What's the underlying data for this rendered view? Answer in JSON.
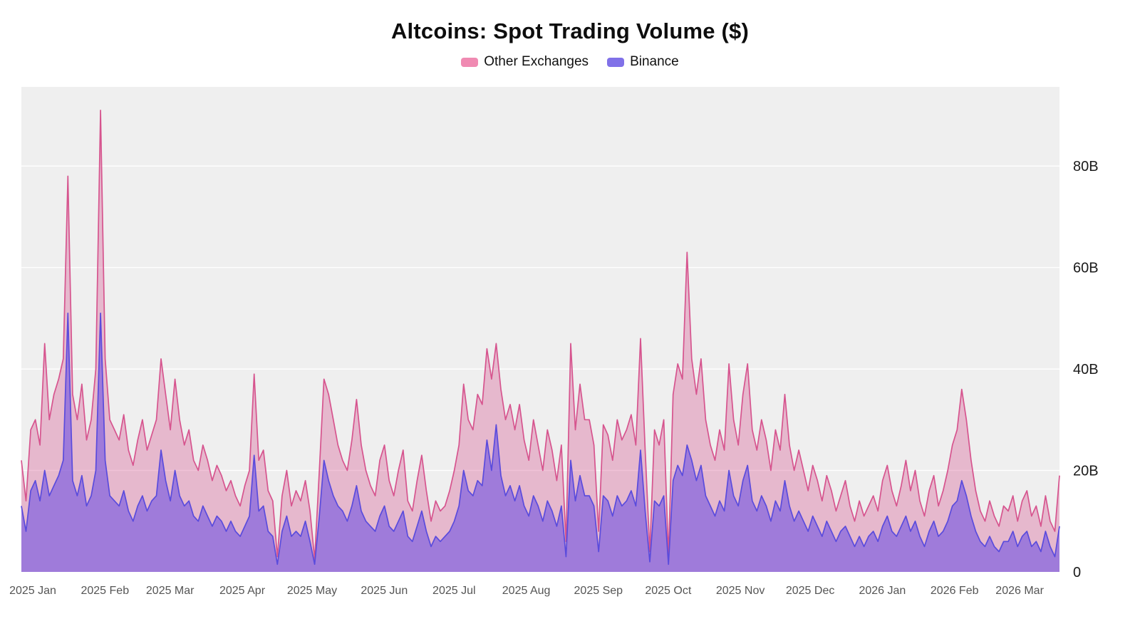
{
  "page": {
    "background": "#ffffff"
  },
  "chart_data": {
    "type": "area",
    "stacked": true,
    "title": "Altcoins: Spot Trading Volume ($)",
    "legend_position": "top-center",
    "grid": "horizontal-only",
    "plot_background": "#efefef",
    "y_axis": {
      "side": "right",
      "max": 95.6,
      "unit": "B",
      "ticks": [
        {
          "label": "0",
          "value": 0
        },
        {
          "label": "20B",
          "value": 20
        },
        {
          "label": "40B",
          "value": 40
        },
        {
          "label": "60B",
          "value": 60
        },
        {
          "label": "80B",
          "value": 80
        }
      ]
    },
    "x_axis": {
      "start_date": "2025-01-01",
      "step_days": 2,
      "span_days": 446,
      "ticks": [
        {
          "label": "2025 Jan",
          "day": 0
        },
        {
          "label": "2025 Feb",
          "day": 31
        },
        {
          "label": "2025 Mar",
          "day": 59
        },
        {
          "label": "2025 Apr",
          "day": 90
        },
        {
          "label": "2025 May",
          "day": 120
        },
        {
          "label": "2025 Jun",
          "day": 151
        },
        {
          "label": "2025 Jul",
          "day": 181
        },
        {
          "label": "2025 Aug",
          "day": 212
        },
        {
          "label": "2025 Sep",
          "day": 243
        },
        {
          "label": "2025 Oct",
          "day": 273
        },
        {
          "label": "2025 Nov",
          "day": 304
        },
        {
          "label": "2025 Dec",
          "day": 334
        },
        {
          "label": "2026 Jan",
          "day": 365
        },
        {
          "label": "2026 Feb",
          "day": 396
        },
        {
          "label": "2026 Mar",
          "day": 424
        }
      ]
    },
    "series": [
      {
        "name": "Other Exchanges",
        "line_color": "#d6548e",
        "fill_color": "rgba(216,84,142,0.35)",
        "swatch_color": "#f08ab2",
        "values_note": "plotted as cumulative top line (Binance + Other Exchanges), billions USD, one value per 2 days",
        "values": [
          22,
          14,
          28,
          30,
          25,
          45,
          30,
          35,
          38,
          42,
          78,
          35,
          30,
          37,
          26,
          30,
          40,
          91,
          42,
          30,
          28,
          26,
          31,
          24,
          21,
          26,
          30,
          24,
          27,
          30,
          42,
          35,
          28,
          38,
          30,
          25,
          28,
          22,
          20,
          25,
          22,
          18,
          21,
          19,
          16,
          18,
          15,
          13,
          17,
          20,
          39,
          22,
          24,
          16,
          14,
          3,
          15,
          20,
          13,
          16,
          14,
          18,
          12,
          2.5,
          20,
          38,
          35,
          30,
          25,
          22,
          20,
          26,
          34,
          25,
          20,
          17,
          15,
          22,
          25,
          18,
          15,
          20,
          24,
          14,
          12,
          18,
          23,
          16,
          10,
          14,
          12,
          13,
          16,
          20,
          25,
          37,
          30,
          28,
          35,
          33,
          44,
          38,
          45,
          36,
          30,
          33,
          28,
          33,
          26,
          22,
          30,
          25,
          20,
          28,
          24,
          18,
          25,
          6,
          45,
          28,
          37,
          30,
          30,
          25,
          8,
          29,
          27,
          22,
          30,
          26,
          28,
          31,
          25,
          46,
          24,
          4,
          28,
          25,
          30,
          3,
          35,
          41,
          38,
          63,
          42,
          35,
          42,
          30,
          25,
          22,
          28,
          24,
          41,
          30,
          25,
          35,
          41,
          28,
          24,
          30,
          26,
          20,
          28,
          24,
          35,
          25,
          20,
          24,
          20,
          16,
          21,
          18,
          14,
          19,
          16,
          12,
          15,
          18,
          13,
          10,
          14,
          11,
          13,
          15,
          12,
          18,
          21,
          16,
          13,
          17,
          22,
          16,
          20,
          14,
          11,
          16,
          19,
          13,
          16,
          20,
          25,
          28,
          36,
          30,
          22,
          16,
          12,
          10,
          14,
          11,
          9,
          13,
          12,
          15,
          10,
          14,
          16,
          11,
          13,
          9,
          15,
          10,
          8,
          19
        ]
      },
      {
        "name": "Binance",
        "line_color": "#5a4bdc",
        "fill_color": "rgba(112,82,226,0.6)",
        "swatch_color": "#8071e8",
        "values_note": "billions USD, one value per 2 days",
        "values": [
          13,
          8,
          16,
          18,
          14,
          20,
          15,
          17,
          19,
          22,
          51,
          18,
          15,
          19,
          13,
          15,
          20,
          51,
          22,
          15,
          14,
          13,
          16,
          12,
          10,
          13,
          15,
          12,
          14,
          15,
          24,
          18,
          14,
          20,
          15,
          13,
          14,
          11,
          10,
          13,
          11,
          9,
          11,
          10,
          8,
          10,
          8,
          7,
          9,
          11,
          23,
          12,
          13,
          8,
          7,
          1.5,
          8,
          11,
          7,
          8,
          7,
          10,
          6,
          1.5,
          11,
          22,
          18,
          15,
          13,
          12,
          10,
          13,
          17,
          12,
          10,
          9,
          8,
          11,
          13,
          9,
          8,
          10,
          12,
          7,
          6,
          9,
          12,
          8,
          5,
          7,
          6,
          7,
          8,
          10,
          13,
          20,
          16,
          15,
          18,
          17,
          26,
          20,
          29,
          19,
          15,
          17,
          14,
          17,
          13,
          11,
          15,
          13,
          10,
          14,
          12,
          9,
          13,
          3,
          22,
          14,
          19,
          15,
          15,
          13,
          4,
          15,
          14,
          11,
          15,
          13,
          14,
          16,
          13,
          24,
          12,
          2,
          14,
          13,
          15,
          1.5,
          18,
          21,
          19,
          25,
          22,
          18,
          21,
          15,
          13,
          11,
          14,
          12,
          20,
          15,
          13,
          18,
          21,
          14,
          12,
          15,
          13,
          10,
          14,
          12,
          18,
          13,
          10,
          12,
          10,
          8,
          11,
          9,
          7,
          10,
          8,
          6,
          8,
          9,
          7,
          5,
          7,
          5,
          7,
          8,
          6,
          9,
          11,
          8,
          7,
          9,
          11,
          8,
          10,
          7,
          5,
          8,
          10,
          7,
          8,
          10,
          13,
          14,
          18,
          15,
          11,
          8,
          6,
          5,
          7,
          5,
          4,
          6,
          6,
          8,
          5,
          7,
          8,
          5,
          6,
          4,
          8,
          5,
          3,
          9
        ]
      }
    ]
  }
}
